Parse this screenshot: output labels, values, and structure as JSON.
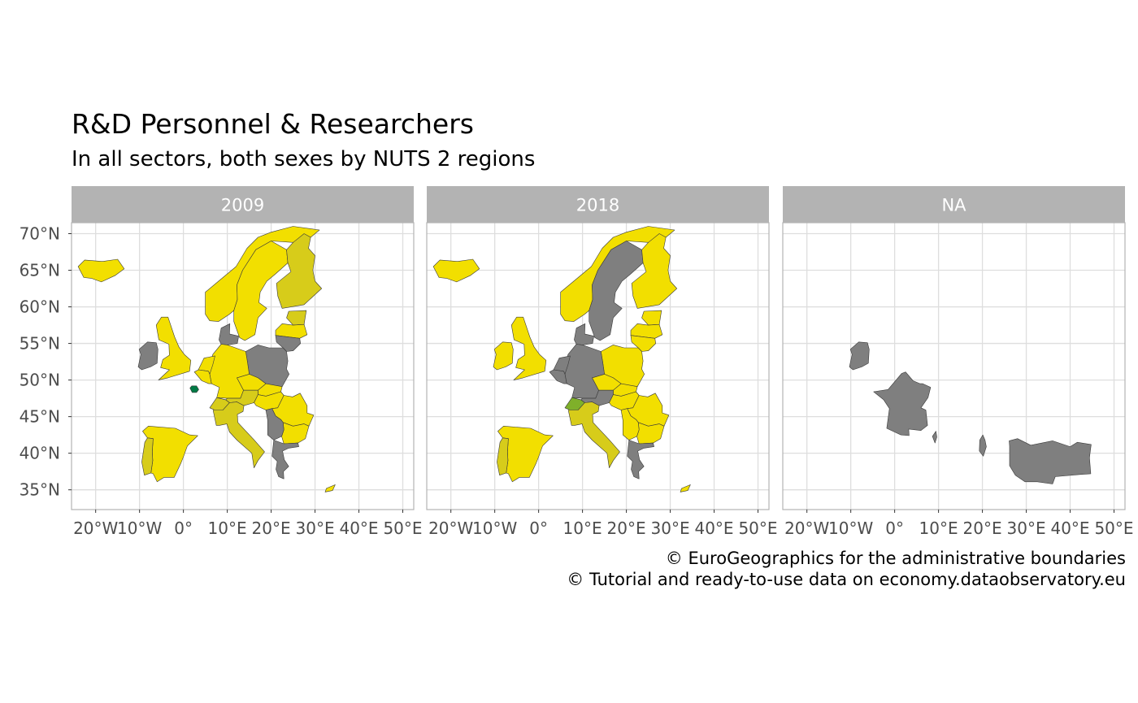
{
  "title": "R&D Personnel & Researchers",
  "subtitle": "In all sectors, both sexes by NUTS 2 regions",
  "captions": [
    "© EuroGeographics for the administrative boundaries",
    "© Tutorial and ready-to-use data on economy.dataobservatory.eu"
  ],
  "colors": {
    "panel_strip": "#b3b3b3",
    "strip_text": "#ffffff",
    "grid": "#dedede",
    "panel_border": "#b3b3b3",
    "axis_text": "#4d4d4d",
    "na_fill": "#7f7f7f",
    "high_fill": "#f2df00",
    "mid_fill": "#d7cc1a",
    "low_fill": "#7fb02a",
    "lowest_fill": "#007a45"
  },
  "chart_data": {
    "type": "choropleth map",
    "facet_variable": "year",
    "facets": [
      {
        "label": "2009"
      },
      {
        "label": "2018"
      },
      {
        "label": "NA"
      }
    ],
    "x_axis": {
      "ticks": [
        -20,
        -10,
        0,
        10,
        20,
        30,
        40,
        50
      ],
      "tick_labels": [
        "20°W",
        "10°W",
        "0°",
        "10°E",
        "20°E",
        "30°E",
        "40°E",
        "50°E"
      ],
      "range": [
        -25.5,
        52.5
      ]
    },
    "y_axis": {
      "ticks": [
        35,
        40,
        45,
        50,
        55,
        60,
        65,
        70
      ],
      "tick_labels": [
        "35°N",
        "40°N",
        "45°N",
        "50°N",
        "55°N",
        "60°N",
        "65°N",
        "70°N"
      ],
      "range": [
        32.3,
        71.5
      ]
    },
    "grid": true,
    "legend": "none",
    "regions": {
      "2009": [
        {
          "name": "Iceland",
          "fill": "high"
        },
        {
          "name": "Ireland",
          "fill": "na"
        },
        {
          "name": "United Kingdom",
          "fill": "high"
        },
        {
          "name": "Norway",
          "fill": "high"
        },
        {
          "name": "Sweden",
          "fill": "high"
        },
        {
          "name": "Finland",
          "fill": "mid"
        },
        {
          "name": "Denmark",
          "fill": "na"
        },
        {
          "name": "Estonia",
          "fill": "mid"
        },
        {
          "name": "Latvia",
          "fill": "high"
        },
        {
          "name": "Lithuania",
          "fill": "na"
        },
        {
          "name": "Poland",
          "fill": "na"
        },
        {
          "name": "Germany",
          "fill": "high"
        },
        {
          "name": "Netherlands",
          "fill": "high"
        },
        {
          "name": "Belgium",
          "fill": "high"
        },
        {
          "name": "Paris region",
          "fill": "lowest"
        },
        {
          "name": "Czechia",
          "fill": "high"
        },
        {
          "name": "Slovakia",
          "fill": "high"
        },
        {
          "name": "Austria",
          "fill": "mid"
        },
        {
          "name": "Hungary",
          "fill": "high"
        },
        {
          "name": "Romania",
          "fill": "high"
        },
        {
          "name": "Bulgaria",
          "fill": "high"
        },
        {
          "name": "Serbia",
          "fill": "na"
        },
        {
          "name": "Greece",
          "fill": "na"
        },
        {
          "name": "Italy",
          "fill": "mid"
        },
        {
          "name": "Switzerland",
          "fill": "mid"
        },
        {
          "name": "Spain",
          "fill": "high"
        },
        {
          "name": "Portugal",
          "fill": "mid"
        },
        {
          "name": "Cyprus",
          "fill": "high"
        }
      ],
      "2018": [
        {
          "name": "Iceland",
          "fill": "high"
        },
        {
          "name": "Ireland",
          "fill": "high"
        },
        {
          "name": "United Kingdom",
          "fill": "high"
        },
        {
          "name": "Norway",
          "fill": "high"
        },
        {
          "name": "Sweden",
          "fill": "na"
        },
        {
          "name": "Finland",
          "fill": "high"
        },
        {
          "name": "Denmark",
          "fill": "na"
        },
        {
          "name": "Estonia",
          "fill": "high"
        },
        {
          "name": "Latvia",
          "fill": "high"
        },
        {
          "name": "Lithuania",
          "fill": "high"
        },
        {
          "name": "Poland",
          "fill": "high"
        },
        {
          "name": "Germany",
          "fill": "na"
        },
        {
          "name": "Netherlands",
          "fill": "na"
        },
        {
          "name": "Belgium",
          "fill": "na"
        },
        {
          "name": "Czechia",
          "fill": "high"
        },
        {
          "name": "Slovakia",
          "fill": "high"
        },
        {
          "name": "Austria",
          "fill": "na"
        },
        {
          "name": "Hungary",
          "fill": "high"
        },
        {
          "name": "Romania",
          "fill": "high"
        },
        {
          "name": "Bulgaria",
          "fill": "high"
        },
        {
          "name": "Serbia",
          "fill": "high"
        },
        {
          "name": "Greece",
          "fill": "na"
        },
        {
          "name": "Italy",
          "fill": "mid"
        },
        {
          "name": "Switzerland",
          "fill": "low"
        },
        {
          "name": "Spain",
          "fill": "high"
        },
        {
          "name": "Portugal",
          "fill": "mid"
        },
        {
          "name": "Cyprus",
          "fill": "high"
        }
      ],
      "NA": [
        {
          "name": "Ireland",
          "fill": "na"
        },
        {
          "name": "France",
          "fill": "na"
        },
        {
          "name": "Corsica",
          "fill": "na"
        },
        {
          "name": "Albania",
          "fill": "na"
        },
        {
          "name": "Turkey",
          "fill": "na"
        }
      ]
    }
  }
}
